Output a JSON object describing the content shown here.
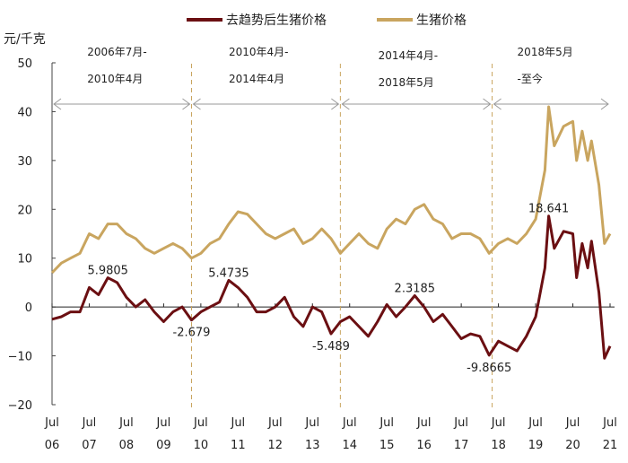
{
  "chart_data": {
    "type": "line",
    "title": "",
    "ylabel": "元/千克",
    "ylim": [
      -20,
      50
    ],
    "yticks": [
      "50",
      "40",
      "30",
      "20",
      "10",
      "0",
      "−10",
      "−20"
    ],
    "ytick_values": [
      50,
      40,
      30,
      20,
      10,
      0,
      -10,
      -20
    ],
    "xlim": [
      2006.5,
      2021.5
    ],
    "xticks": [
      {
        "m": "Jul",
        "y": "06",
        "v": 2006.5
      },
      {
        "m": "Jul",
        "y": "07",
        "v": 2007.5
      },
      {
        "m": "Jul",
        "y": "08",
        "v": 2008.5
      },
      {
        "m": "Jul",
        "y": "09",
        "v": 2009.5
      },
      {
        "m": "Jul",
        "y": "10",
        "v": 2010.5
      },
      {
        "m": "Jul",
        "y": "11",
        "v": 2011.5
      },
      {
        "m": "Jul",
        "y": "12",
        "v": 2012.5
      },
      {
        "m": "Jul",
        "y": "13",
        "v": 2013.5
      },
      {
        "m": "Jul",
        "y": "14",
        "v": 2014.5
      },
      {
        "m": "Jul",
        "y": "15",
        "v": 2015.5
      },
      {
        "m": "Jul",
        "y": "16",
        "v": 2016.5
      },
      {
        "m": "Jul",
        "y": "17",
        "v": 2017.5
      },
      {
        "m": "Jul",
        "y": "18",
        "v": 2018.5
      },
      {
        "m": "Jul",
        "y": "19",
        "v": 2019.5
      },
      {
        "m": "Jul",
        "y": "20",
        "v": 2020.5
      },
      {
        "m": "Jul",
        "y": "21",
        "v": 2021.5
      }
    ],
    "legend_position": "top-center",
    "series": [
      {
        "name": "去趋势后生猪价格",
        "color": "#6b0f12",
        "x": [
          2006.5,
          2006.75,
          2007.0,
          2007.25,
          2007.5,
          2007.75,
          2008.0,
          2008.25,
          2008.5,
          2008.75,
          2009.0,
          2009.25,
          2009.5,
          2009.75,
          2010.0,
          2010.25,
          2010.5,
          2010.75,
          2011.0,
          2011.25,
          2011.5,
          2011.75,
          2012.0,
          2012.25,
          2012.5,
          2012.75,
          2013.0,
          2013.25,
          2013.5,
          2013.75,
          2014.0,
          2014.25,
          2014.5,
          2014.75,
          2015.0,
          2015.25,
          2015.5,
          2015.75,
          2016.0,
          2016.25,
          2016.5,
          2016.75,
          2017.0,
          2017.25,
          2017.5,
          2017.75,
          2018.0,
          2018.25,
          2018.5,
          2018.75,
          2019.0,
          2019.25,
          2019.5,
          2019.75,
          2019.85,
          2020.0,
          2020.25,
          2020.5,
          2020.6,
          2020.75,
          2020.9,
          2021.0,
          2021.2,
          2021.35,
          2021.5
        ],
        "values": [
          -2.5,
          -2,
          -1,
          -1,
          4,
          2.5,
          5.98,
          5,
          2,
          0,
          1.5,
          -1,
          -3,
          -1,
          0,
          -2.68,
          -1,
          0,
          1,
          5.47,
          4,
          2,
          -1,
          -1,
          0,
          2,
          -2,
          -4,
          0,
          -1,
          -5.49,
          -3,
          -2,
          -4,
          -6,
          -3,
          0.5,
          -2,
          0,
          2.32,
          0,
          -3,
          -1.5,
          -4,
          -6.5,
          -5.5,
          -6,
          -9.87,
          -7,
          -8,
          -9,
          -6,
          -2,
          8,
          18.64,
          12,
          15.5,
          15,
          6,
          13,
          8,
          13.5,
          3,
          -10.5,
          -8
        ]
      },
      {
        "name": "生猪价格",
        "color": "#c9a55f",
        "x": [
          2006.5,
          2006.75,
          2007.0,
          2007.25,
          2007.5,
          2007.75,
          2008.0,
          2008.25,
          2008.5,
          2008.75,
          2009.0,
          2009.25,
          2009.5,
          2009.75,
          2010.0,
          2010.25,
          2010.5,
          2010.75,
          2011.0,
          2011.25,
          2011.5,
          2011.75,
          2012.0,
          2012.25,
          2012.5,
          2012.75,
          2013.0,
          2013.25,
          2013.5,
          2013.75,
          2014.0,
          2014.25,
          2014.5,
          2014.75,
          2015.0,
          2015.25,
          2015.5,
          2015.75,
          2016.0,
          2016.25,
          2016.5,
          2016.75,
          2017.0,
          2017.25,
          2017.5,
          2017.75,
          2018.0,
          2018.25,
          2018.5,
          2018.75,
          2019.0,
          2019.25,
          2019.5,
          2019.75,
          2019.85,
          2020.0,
          2020.25,
          2020.5,
          2020.6,
          2020.75,
          2020.9,
          2021.0,
          2021.2,
          2021.35,
          2021.5
        ],
        "values": [
          7,
          9,
          10,
          11,
          15,
          14,
          17,
          17,
          15,
          14,
          12,
          11,
          12,
          13,
          12,
          10,
          11,
          13,
          14,
          17,
          19.5,
          19,
          17,
          15,
          14,
          15,
          16,
          13,
          14,
          16,
          14,
          11,
          13,
          15,
          13,
          12,
          16,
          18,
          17,
          20,
          21,
          18,
          17,
          14,
          15,
          15,
          14,
          11,
          13,
          14,
          13,
          15,
          18,
          28,
          41,
          33,
          37,
          38,
          30,
          36,
          30,
          34,
          25,
          13,
          15
        ]
      }
    ],
    "annotations": [
      {
        "text": "5.9805",
        "x": 2008.0,
        "y": 5.98
      },
      {
        "text": "-2.679",
        "x": 2010.25,
        "y": -2.68
      },
      {
        "text": "5.4735",
        "x": 2011.25,
        "y": 5.47
      },
      {
        "text": "-5.489",
        "x": 2014.0,
        "y": -5.49
      },
      {
        "text": "2.3185",
        "x": 2016.25,
        "y": 2.32
      },
      {
        "text": "-9.8665",
        "x": 2018.25,
        "y": -9.87
      },
      {
        "text": "18.641",
        "x": 2019.85,
        "y": 18.64
      }
    ],
    "periods": [
      {
        "line1": "2006年7月-",
        "line2": "2010年4月",
        "start": 2006.5,
        "end": 2010.25
      },
      {
        "line1": "2010年4月-",
        "line2": "2014年4月",
        "start": 2010.25,
        "end": 2014.25
      },
      {
        "line1": "2014年4月-",
        "line2": "2018年5月",
        "start": 2014.25,
        "end": 2018.33
      },
      {
        "line1": "2018年5月",
        "line2": "-至今",
        "start": 2018.33,
        "end": 2021.5
      }
    ]
  }
}
